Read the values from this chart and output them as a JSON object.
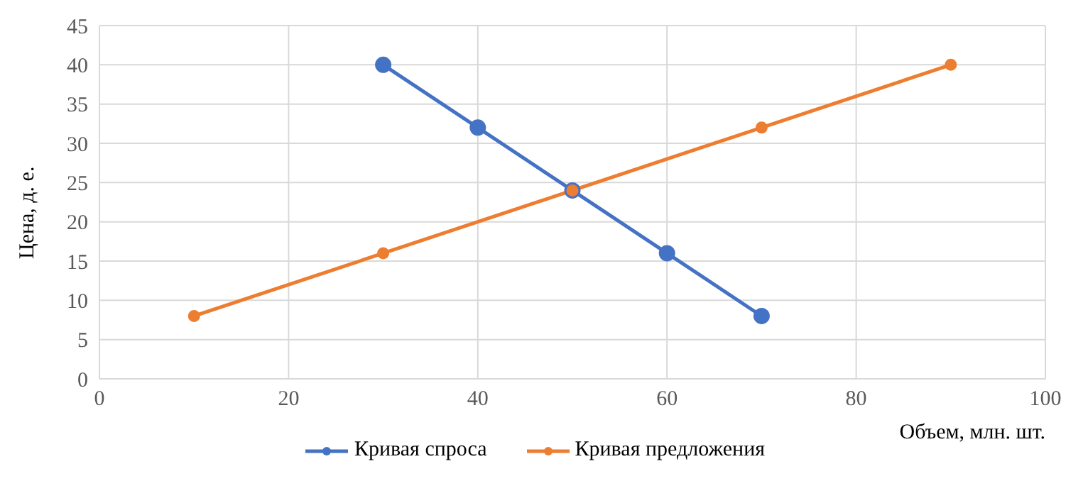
{
  "chart_data": {
    "type": "line",
    "xlabel": "Объем, млн. шт.",
    "ylabel": "Цена, д. е.",
    "series": [
      {
        "name": "Кривая спроса",
        "color": "#4472c4",
        "x": [
          30,
          40,
          50,
          60,
          70
        ],
        "values": [
          40,
          32,
          24,
          16,
          8
        ]
      },
      {
        "name": "Кривая предложения",
        "color": "#ed7d31",
        "x": [
          10,
          30,
          50,
          70,
          90
        ],
        "values": [
          8,
          16,
          24,
          32,
          40
        ]
      }
    ],
    "xlim": [
      0,
      100
    ],
    "xticks": [
      0,
      20,
      40,
      60,
      80,
      100
    ],
    "ylim": [
      0,
      45
    ],
    "yticks": [
      0,
      5,
      10,
      15,
      20,
      25,
      30,
      35,
      40,
      45
    ],
    "grid": true,
    "legend": "bottom",
    "marker": "circle",
    "line_style": "solid"
  }
}
